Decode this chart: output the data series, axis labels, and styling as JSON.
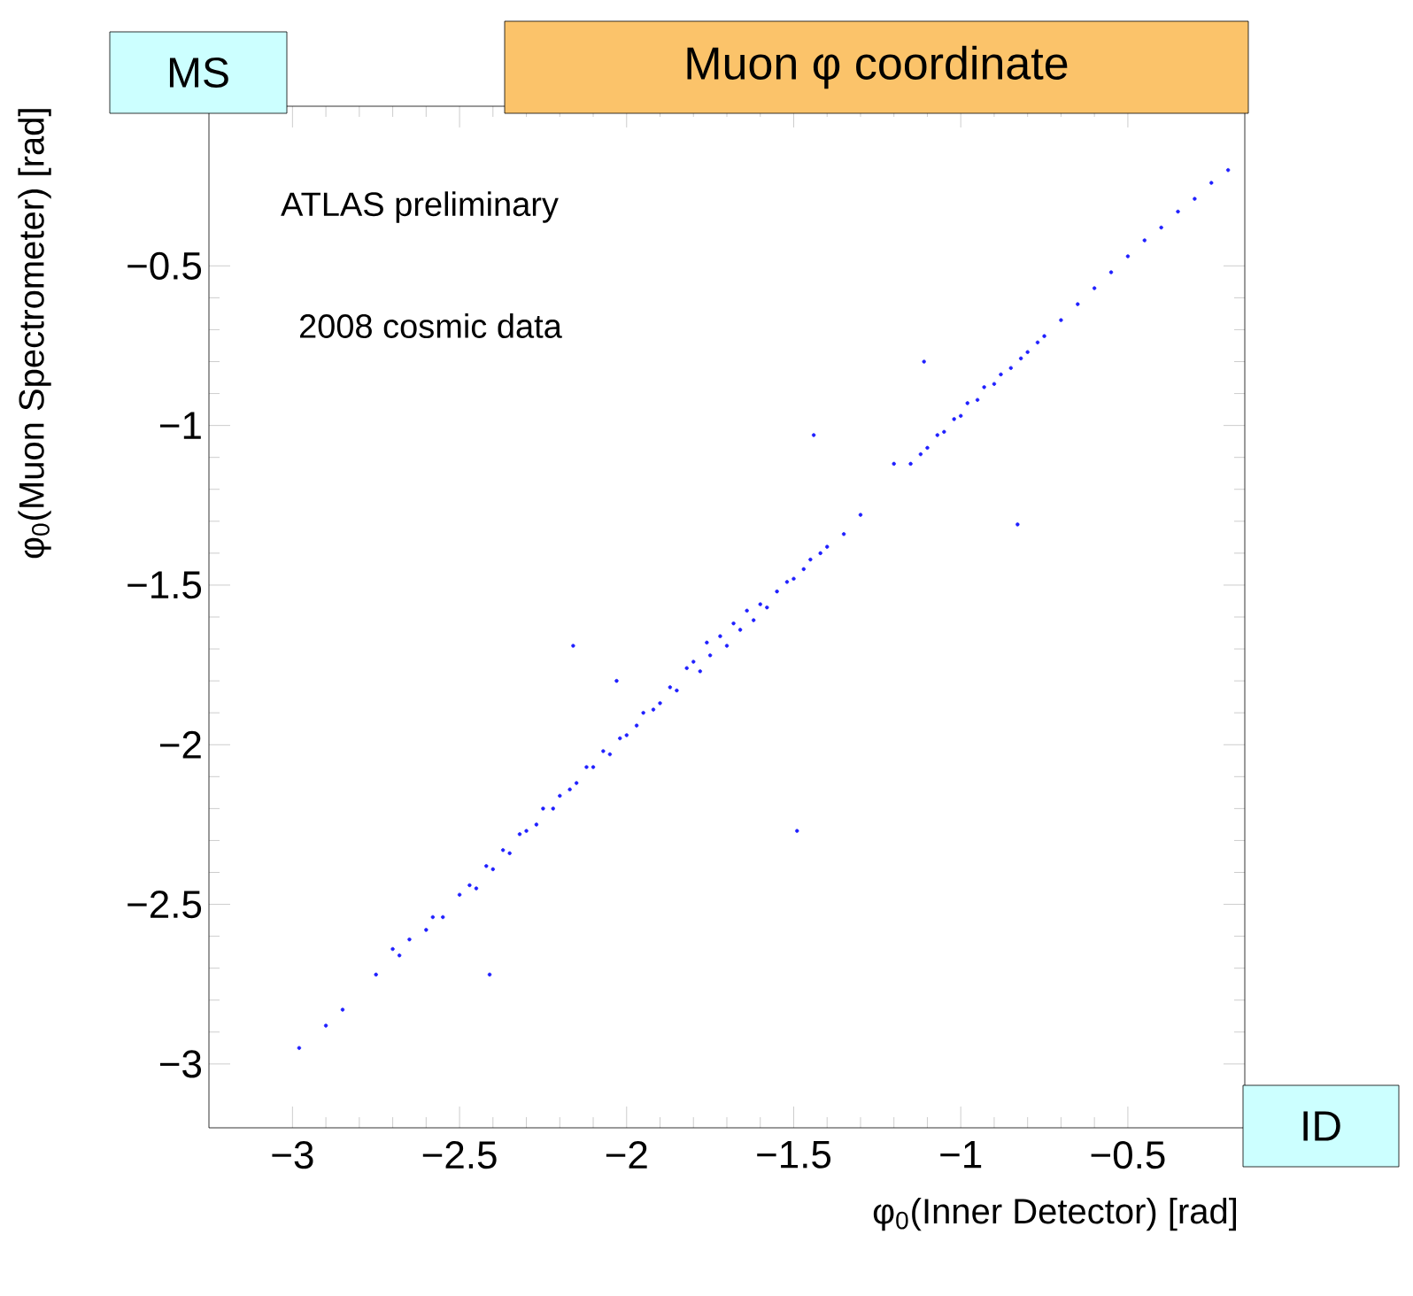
{
  "chart_data": {
    "type": "scatter",
    "title": "Muon φ coordinate",
    "xlabel": "φ$_{0}$(Inner Detector) [rad]",
    "ylabel": "φ$_{0}$(Muon Spectrometer) [rad]",
    "annotations": [
      "MS",
      "ATLAS preliminary",
      "2008 cosmic data",
      "ID"
    ],
    "xlim": [
      -3.25,
      -0.15
    ],
    "ylim": [
      -3.2,
      0
    ],
    "xticks": [
      {
        "value": -3,
        "label": "−3"
      },
      {
        "value": -2.5,
        "label": "−2.5"
      },
      {
        "value": -2,
        "label": "−2"
      },
      {
        "value": -1.5,
        "label": "−1.5"
      },
      {
        "value": -1,
        "label": "−1"
      },
      {
        "value": -0.5,
        "label": "−0.5"
      }
    ],
    "yticks": [
      {
        "value": -3,
        "label": "−3"
      },
      {
        "value": -2.5,
        "label": "−2.5"
      },
      {
        "value": -2,
        "label": "−2"
      },
      {
        "value": -1.5,
        "label": "−1.5"
      },
      {
        "value": -1,
        "label": "−1"
      },
      {
        "value": -0.5,
        "label": "−0.5"
      }
    ],
    "grid": false,
    "series": [
      {
        "color": "#1f1fff",
        "x": [
          -2.98,
          -2.9,
          -2.85,
          -2.75,
          -2.7,
          -2.68,
          -2.65,
          -2.6,
          -2.58,
          -2.55,
          -2.5,
          -2.47,
          -2.45,
          -2.42,
          -2.4,
          -2.37,
          -2.35,
          -2.32,
          -2.3,
          -2.27,
          -2.25,
          -2.22,
          -2.2,
          -2.17,
          -2.15,
          -2.12,
          -2.1,
          -2.07,
          -2.05,
          -2.02,
          -2.0,
          -1.97,
          -1.95,
          -1.92,
          -1.9,
          -1.87,
          -1.85,
          -1.82,
          -1.8,
          -1.78,
          -1.76,
          -1.75,
          -1.72,
          -1.7,
          -1.68,
          -1.66,
          -1.64,
          -1.62,
          -1.6,
          -1.58,
          -1.55,
          -1.52,
          -1.5,
          -1.47,
          -1.45,
          -1.42,
          -1.4,
          -1.35,
          -1.3,
          -1.15,
          -1.12,
          -1.1,
          -1.07,
          -1.05,
          -1.02,
          -1.0,
          -0.98,
          -0.95,
          -0.93,
          -0.9,
          -0.88,
          -0.85,
          -0.82,
          -0.8,
          -0.77,
          -0.75,
          -0.7,
          -0.65,
          -0.6,
          -0.55,
          -0.5,
          -0.45,
          -0.4,
          -0.35,
          -0.3,
          -0.25,
          -0.2,
          -1.44,
          -2.41,
          -0.83,
          -1.11,
          -2.03,
          -1.49,
          -2.16,
          -1.2
        ],
        "values": [
          -2.95,
          -2.88,
          -2.83,
          -2.72,
          -2.64,
          -2.66,
          -2.61,
          -2.58,
          -2.54,
          -2.54,
          -2.47,
          -2.44,
          -2.45,
          -2.38,
          -2.39,
          -2.33,
          -2.34,
          -2.28,
          -2.27,
          -2.25,
          -2.2,
          -2.2,
          -2.16,
          -2.14,
          -2.12,
          -2.07,
          -2.07,
          -2.02,
          -2.03,
          -1.98,
          -1.97,
          -1.94,
          -1.9,
          -1.89,
          -1.87,
          -1.82,
          -1.83,
          -1.76,
          -1.74,
          -1.77,
          -1.68,
          -1.72,
          -1.66,
          -1.69,
          -1.62,
          -1.64,
          -1.58,
          -1.61,
          -1.56,
          -1.57,
          -1.52,
          -1.49,
          -1.48,
          -1.45,
          -1.42,
          -1.4,
          -1.38,
          -1.34,
          -1.28,
          -1.12,
          -1.09,
          -1.07,
          -1.03,
          -1.02,
          -0.98,
          -0.97,
          -0.93,
          -0.92,
          -0.88,
          -0.87,
          -0.84,
          -0.82,
          -0.79,
          -0.77,
          -0.74,
          -0.72,
          -0.67,
          -0.62,
          -0.57,
          -0.52,
          -0.47,
          -0.42,
          -0.38,
          -0.33,
          -0.29,
          -0.24,
          -0.2,
          -1.03,
          -2.72,
          -1.31,
          -0.8,
          -1.8,
          -2.27,
          -1.69,
          -1.12
        ]
      }
    ]
  }
}
